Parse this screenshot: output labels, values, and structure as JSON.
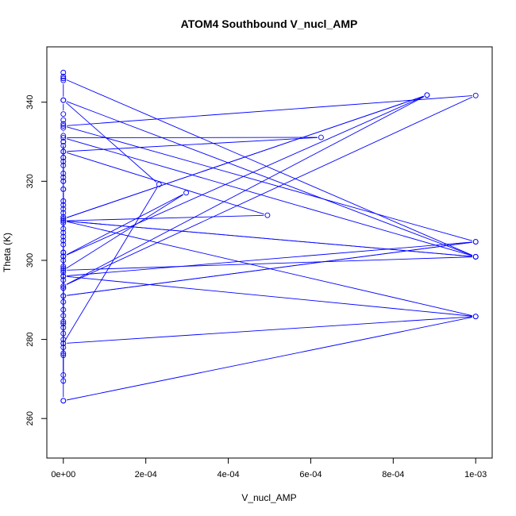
{
  "chart_data": {
    "type": "line",
    "title": "ATOM4 Southbound V_nucl_AMP",
    "xlabel": "V_nucl_AMP",
    "ylabel": "Theta (K)",
    "xlim": [
      -4e-05,
      0.00104
    ],
    "ylim": [
      250,
      354
    ],
    "x_ticks": [
      0,
      0.0002,
      0.0004,
      0.0006,
      0.0008,
      0.001
    ],
    "x_tick_labels": [
      "0e+00",
      "2e-04",
      "4e-04",
      "6e-04",
      "8e-04",
      "1e-03"
    ],
    "y_ticks": [
      260,
      280,
      300,
      320,
      340
    ],
    "y_tick_labels": [
      "260",
      "280",
      "300",
      "320",
      "340"
    ],
    "grid": false,
    "legend": "none",
    "color": "#0000ff",
    "series": [
      {
        "x": [
          0,
          0,
          0,
          0,
          0,
          0,
          0,
          0,
          0,
          0,
          0,
          0,
          0,
          0,
          0,
          0,
          0,
          0,
          0,
          0,
          0,
          0,
          0,
          0,
          0,
          0,
          0,
          0,
          0,
          0,
          0,
          0,
          0,
          0,
          0,
          0,
          0,
          0,
          0,
          0,
          0,
          0,
          0,
          0,
          0,
          0,
          0,
          0,
          0,
          0,
          0,
          0,
          0,
          0,
          0,
          0,
          0,
          0,
          0,
          0,
          0,
          0,
          0,
          0,
          0,
          0.001,
          0,
          0.000232,
          0,
          0.001,
          0,
          0.000625,
          0,
          0.000495,
          0,
          0.001,
          0,
          0.000298,
          0,
          0.000882,
          0,
          0.000882,
          0,
          0.001,
          0,
          0.001,
          0,
          0.001,
          0,
          0.001,
          0,
          0.001,
          0
        ],
        "y": [
          347.5,
          346.5,
          346,
          345.5,
          340.5,
          337,
          335.5,
          334.5,
          333.5,
          331.5,
          330,
          329,
          327.5,
          326,
          325,
          324,
          322,
          321,
          320,
          318,
          315,
          314,
          313,
          311,
          310.5,
          309.5,
          308,
          306,
          305,
          304,
          302,
          301,
          300,
          298.5,
          297,
          296,
          295,
          293,
          291,
          289.5,
          287.5,
          286,
          284.5,
          283,
          281.5,
          280,
          279,
          278,
          276.5,
          271,
          269.5,
          312,
          318,
          330,
          326,
          320,
          307,
          298,
          293,
          284,
          276,
          302,
          296,
          264.5,
          264.5,
          285.8,
          279,
          319.2,
          340.5,
          300.9,
          331,
          331.1,
          327.5,
          311.4,
          310,
          300.9,
          297.5,
          317.1,
          301,
          341.8,
          310.5,
          341.8,
          293.5,
          341.7,
          334,
          304.7,
          291,
          304.7,
          296,
          285.8,
          310,
          300.9,
          346
        ]
      }
    ]
  }
}
